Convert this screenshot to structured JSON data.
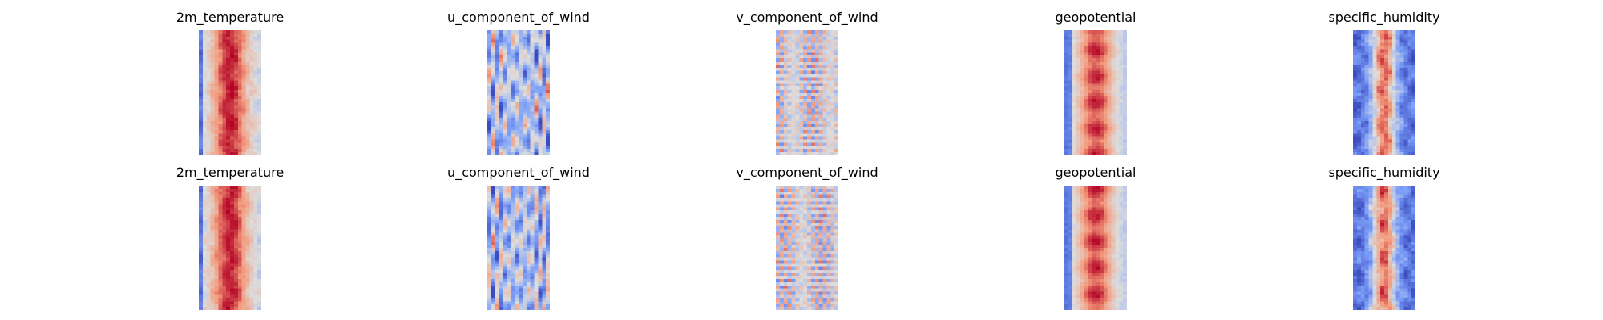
{
  "chart_data": {
    "type": "heatmap",
    "colormap": "coolwarm",
    "axes": "off",
    "grid": false,
    "legend": "none",
    "panels": [
      {
        "title": "2m_temperature",
        "field": "temperature",
        "row": 0,
        "col": 0
      },
      {
        "title": "u_component_of_wind",
        "field": "uwind",
        "row": 0,
        "col": 1
      },
      {
        "title": "v_component_of_wind",
        "field": "vwind",
        "row": 0,
        "col": 2
      },
      {
        "title": "geopotential",
        "field": "geopotential",
        "row": 0,
        "col": 3
      },
      {
        "title": "specific_humidity",
        "field": "humidity",
        "row": 0,
        "col": 4
      },
      {
        "title": "2m_temperature",
        "field": "temperature",
        "row": 1,
        "col": 0
      },
      {
        "title": "u_component_of_wind",
        "field": "uwind",
        "row": 1,
        "col": 1
      },
      {
        "title": "v_component_of_wind",
        "field": "vwind",
        "row": 1,
        "col": 2
      },
      {
        "title": "geopotential",
        "field": "geopotential",
        "row": 1,
        "col": 3
      },
      {
        "title": "specific_humidity",
        "field": "humidity",
        "row": 1,
        "col": 4
      }
    ]
  }
}
